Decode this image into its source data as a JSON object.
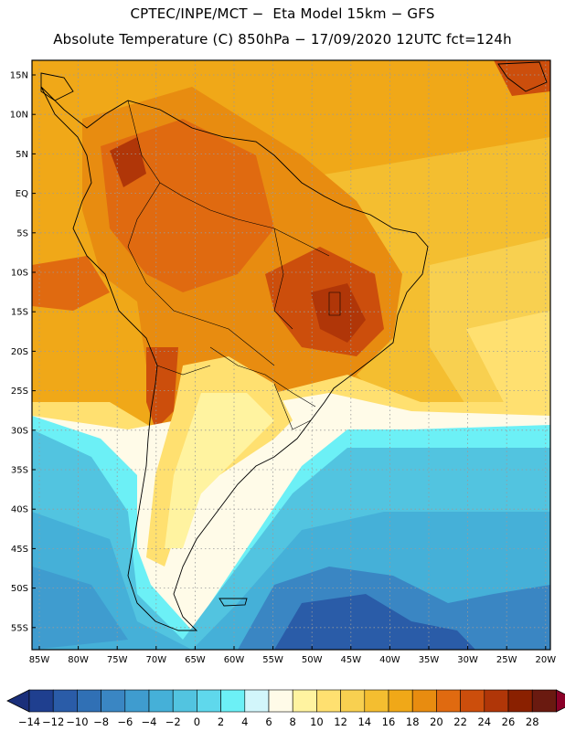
{
  "title_line1": "CPTEC/INPE/MCT −  Eta Model 15km − GFS",
  "title_line2": "Absolute Temperature (C) 850hPa − 17/09/2020 12UTC fct=124h",
  "lat_labels": [
    "15N",
    "10N",
    "5N",
    "EQ",
    "5S",
    "10S",
    "15S",
    "20S",
    "25S",
    "30S",
    "35S",
    "40S",
    "45S",
    "50S",
    "55S"
  ],
  "lon_labels": [
    "85W",
    "80W",
    "75W",
    "70W",
    "65W",
    "60W",
    "55W",
    "50W",
    "45W",
    "40W",
    "35W",
    "30W",
    "25W",
    "20W"
  ],
  "colorbar": {
    "labels": [
      "−14",
      "−12",
      "−10",
      "−8",
      "−6",
      "−4",
      "−2",
      "0",
      "2",
      "4",
      "6",
      "8",
      "10",
      "12",
      "14",
      "16",
      "18",
      "20",
      "22",
      "24",
      "26",
      "28"
    ],
    "colors": [
      "#1f3f8f",
      "#2a5ca8",
      "#3070b5",
      "#3a86c3",
      "#3f9ccf",
      "#45b0d8",
      "#52c4e0",
      "#5fd8ec",
      "#6cf0f6",
      "#d2f6fb",
      "#fffbe8",
      "#fff3a0",
      "#ffe070",
      "#f8d050",
      "#f4be30",
      "#f0a818",
      "#e88c10",
      "#e06a10",
      "#cc4e0c",
      "#b03608",
      "#8a2000",
      "#6a1a10"
    ],
    "below_color": "#1a2f7a",
    "above_color": "#8a0028"
  }
}
